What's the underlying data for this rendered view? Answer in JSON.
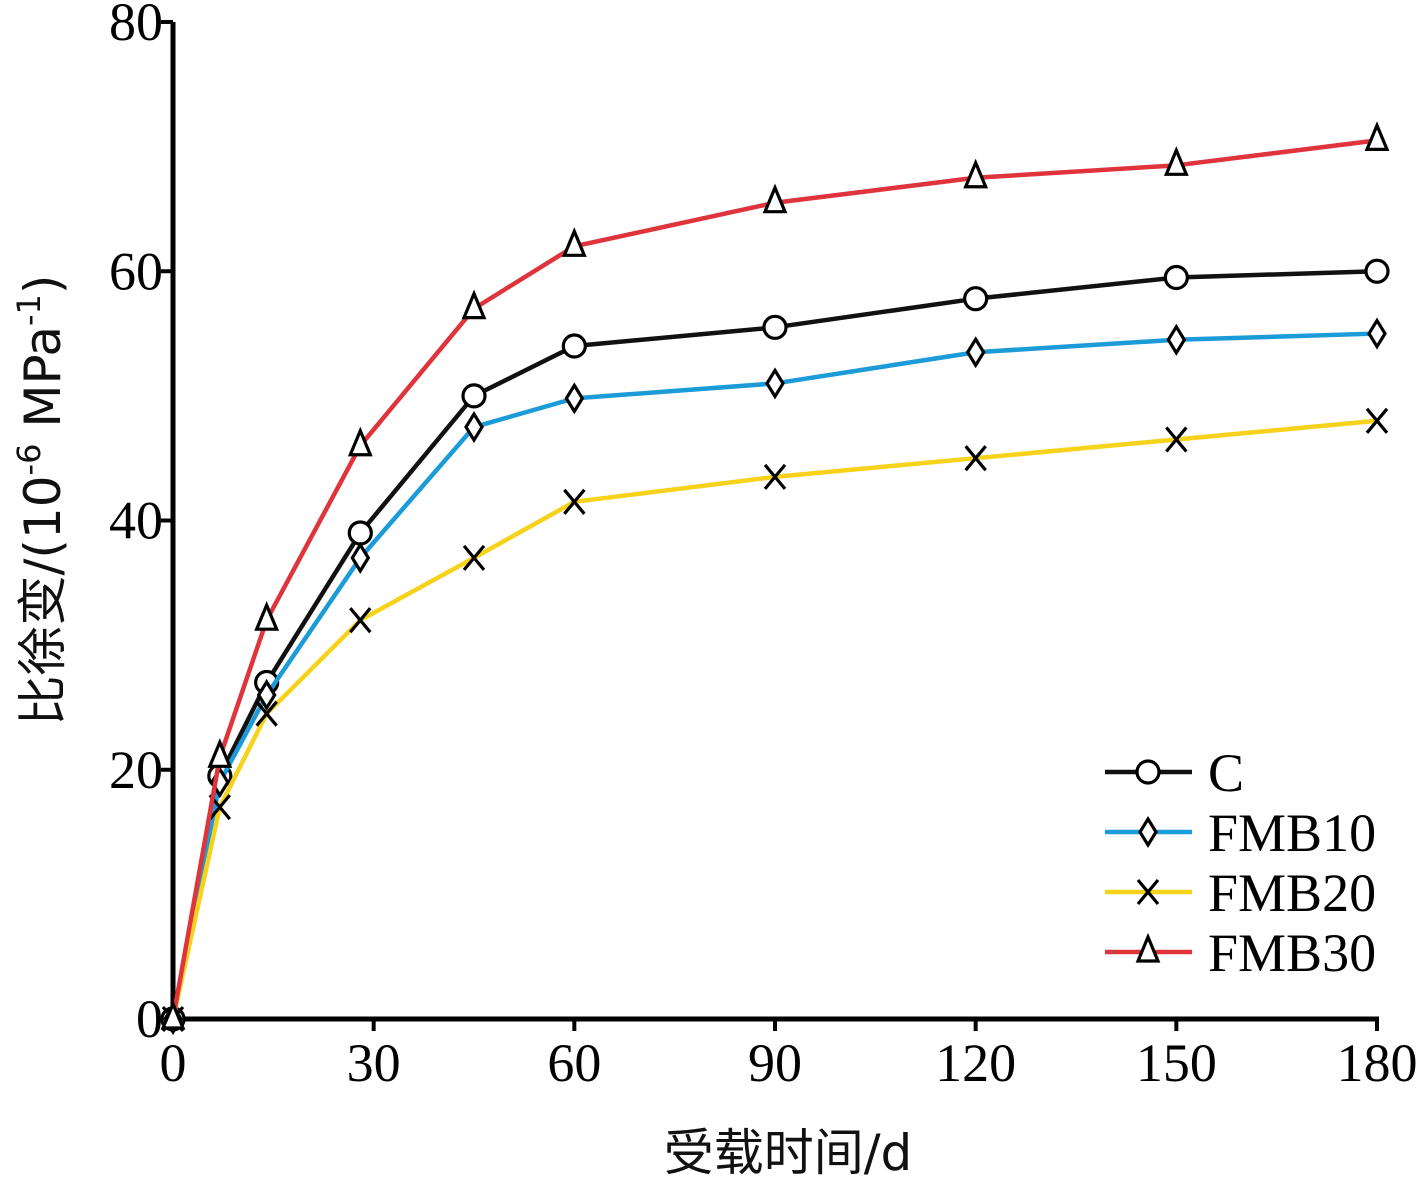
{
  "chart_data": {
    "type": "line",
    "xlabel": "受载时间/d",
    "ylabel": {
      "prefix": "比徐变/(10",
      "exp1": "-6",
      "mid": " MPa",
      "exp2": "-1",
      "suffix": ")"
    },
    "xlim": [
      0,
      180
    ],
    "ylim": [
      0,
      80
    ],
    "xticks": [
      0,
      30,
      60,
      90,
      120,
      150,
      180
    ],
    "yticks": [
      0,
      20,
      40,
      60,
      80
    ],
    "grid": false,
    "legend_position": "bottom-right",
    "x": [
      0,
      7,
      14,
      28,
      45,
      60,
      90,
      120,
      150,
      180
    ],
    "series": [
      {
        "name": "C",
        "color": "#111111",
        "marker": "circle",
        "values": [
          0,
          19.5,
          27,
          39,
          50,
          54,
          55.5,
          57.8,
          59.5,
          60
        ]
      },
      {
        "name": "FMB10",
        "color": "#1b9bd7",
        "marker": "diamond",
        "values": [
          0,
          19,
          26,
          37,
          47.5,
          49.8,
          51,
          53.5,
          54.5,
          55
        ]
      },
      {
        "name": "FMB20",
        "color": "#f7d21a",
        "marker": "x",
        "values": [
          0,
          17,
          24.5,
          32,
          37,
          41.5,
          43.5,
          45,
          46.5,
          48
        ]
      },
      {
        "name": "FMB30",
        "color": "#e0343c",
        "marker": "triangle",
        "values": [
          0,
          21,
          32,
          46,
          57,
          62,
          65.5,
          67.5,
          68.5,
          70.5
        ]
      }
    ]
  }
}
